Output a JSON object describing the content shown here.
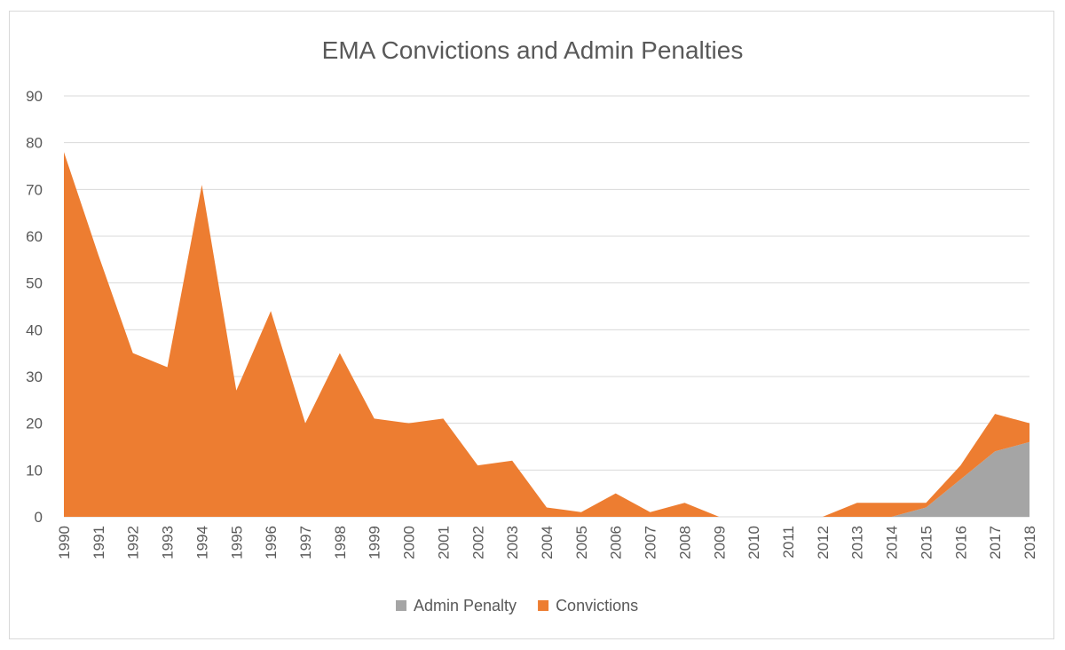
{
  "chart_data": {
    "type": "area",
    "stacked": true,
    "title": "EMA Convictions and Admin Penalties",
    "xlabel": "",
    "ylabel": "",
    "ylim": [
      0,
      90
    ],
    "yticks": [
      0,
      10,
      20,
      30,
      40,
      50,
      60,
      70,
      80,
      90
    ],
    "grid": true,
    "legend_position": "bottom",
    "categories": [
      "1990",
      "1991",
      "1992",
      "1993",
      "1994",
      "1995",
      "1996",
      "1997",
      "1998",
      "1999",
      "2000",
      "2001",
      "2002",
      "2003",
      "2004",
      "2005",
      "2006",
      "2007",
      "2008",
      "2009",
      "2010",
      "2011",
      "2012",
      "2013",
      "2014",
      "2015",
      "2016",
      "2017",
      "2018"
    ],
    "series": [
      {
        "name": "Admin Penalty",
        "color": "#a5a5a5",
        "values": [
          0,
          0,
          0,
          0,
          0,
          0,
          0,
          0,
          0,
          0,
          0,
          0,
          0,
          0,
          0,
          0,
          0,
          0,
          0,
          0,
          0,
          0,
          0,
          0,
          0,
          2,
          8,
          14,
          16
        ]
      },
      {
        "name": "Convictions",
        "color": "#ed7d31",
        "values": [
          78,
          56,
          35,
          32,
          71,
          27,
          44,
          20,
          35,
          21,
          20,
          21,
          11,
          12,
          2,
          1,
          5,
          1,
          3,
          0,
          0,
          0,
          0,
          3,
          3,
          1,
          3,
          8,
          4
        ]
      }
    ]
  }
}
